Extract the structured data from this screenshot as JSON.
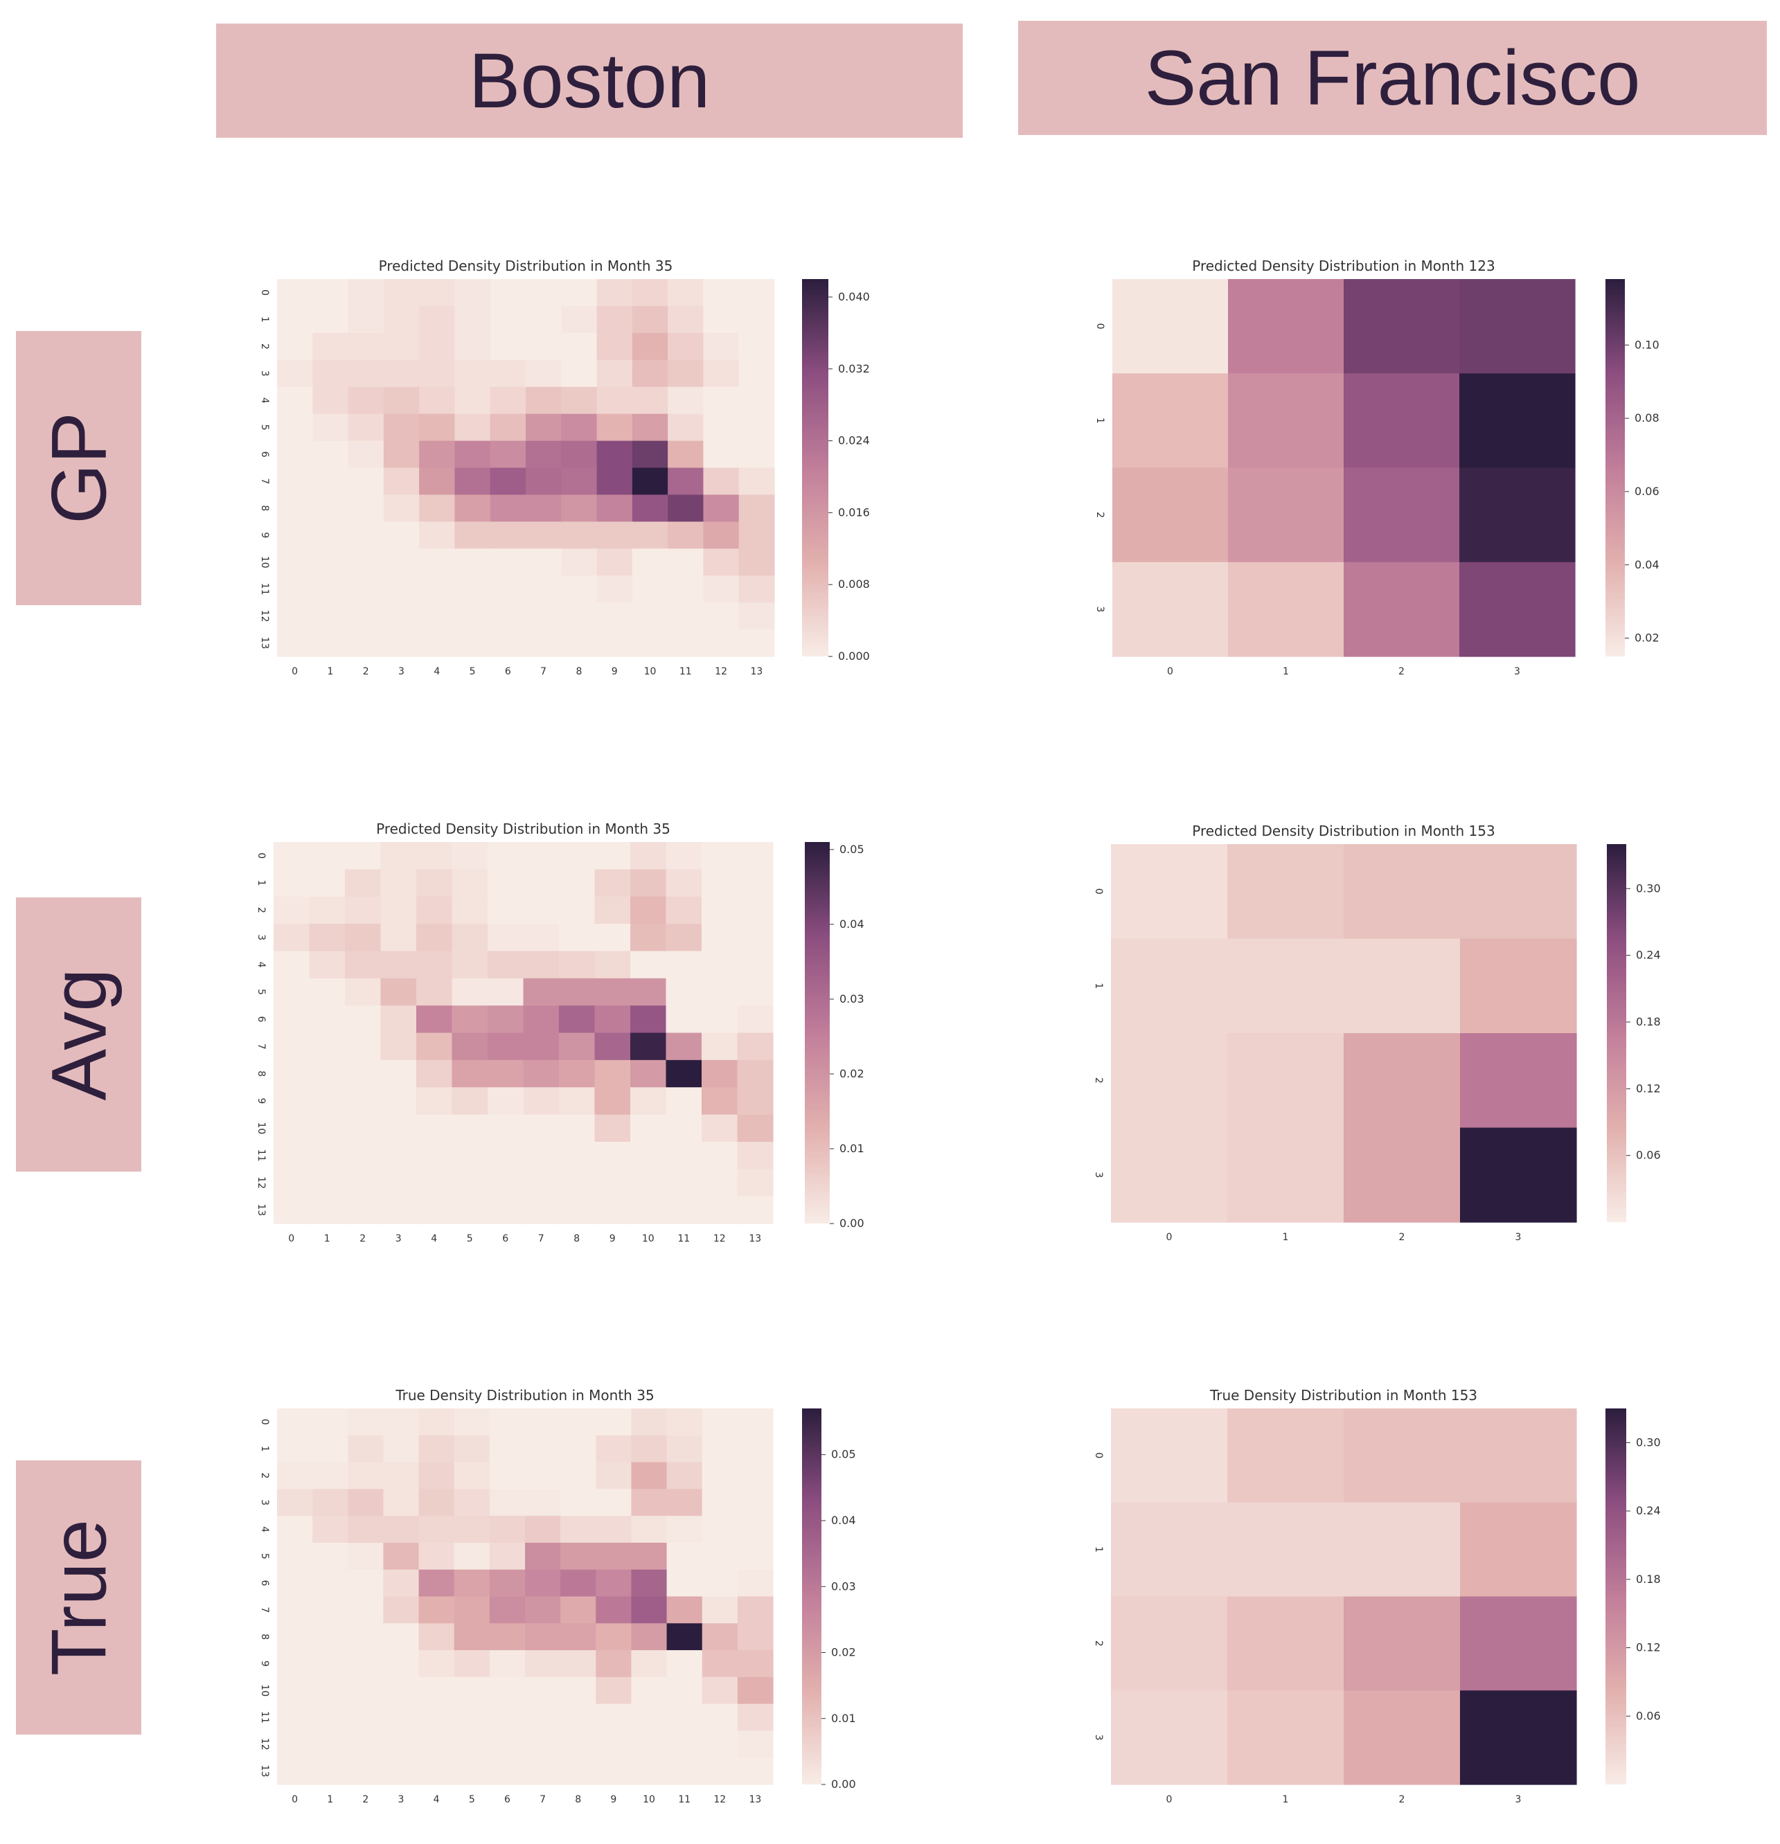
{
  "columns": [
    "Boston",
    "San Francisco"
  ],
  "rows": [
    "GP",
    "Avg",
    "True"
  ],
  "colormap": [
    "#f8ece6",
    "#e2b0ae",
    "#c17e9a",
    "#8c4e80",
    "#2b1d3e"
  ],
  "chart_data": [
    {
      "type": "heatmap",
      "row": "GP",
      "column": "Boston",
      "title": "Predicted Density Distribution in Month 35",
      "x_labels": [
        "0",
        "1",
        "2",
        "3",
        "4",
        "5",
        "6",
        "7",
        "8",
        "9",
        "10",
        "11",
        "12",
        "13"
      ],
      "y_labels": [
        "0",
        "1",
        "2",
        "3",
        "4",
        "5",
        "6",
        "7",
        "8",
        "9",
        "10",
        "11",
        "12",
        "13"
      ],
      "vmin": 0,
      "vmax": 0.042,
      "colorbar_ticks": [
        "0.000",
        "0.008",
        "0.016",
        "0.024",
        "0.032",
        "0.040"
      ],
      "colorbar_tick_values": [
        0,
        0.008,
        0.016,
        0.024,
        0.032,
        0.04
      ],
      "values": [
        [
          0.0,
          0.0,
          0.001,
          0.002,
          0.002,
          0.001,
          0.0,
          0.0,
          0.0,
          0.003,
          0.004,
          0.002,
          0.0,
          0.0
        ],
        [
          0.0,
          0.0,
          0.001,
          0.002,
          0.003,
          0.001,
          0.0,
          0.0,
          0.001,
          0.005,
          0.007,
          0.003,
          0.0,
          0.0
        ],
        [
          0.0,
          0.002,
          0.002,
          0.002,
          0.003,
          0.001,
          0.0,
          0.0,
          0.0,
          0.005,
          0.01,
          0.005,
          0.001,
          0.0
        ],
        [
          0.001,
          0.003,
          0.003,
          0.003,
          0.003,
          0.002,
          0.002,
          0.001,
          0.0,
          0.003,
          0.008,
          0.006,
          0.002,
          0.0
        ],
        [
          0.0,
          0.003,
          0.005,
          0.006,
          0.004,
          0.002,
          0.004,
          0.007,
          0.006,
          0.004,
          0.004,
          0.001,
          0.0,
          0.0
        ],
        [
          0.0,
          0.001,
          0.003,
          0.008,
          0.009,
          0.004,
          0.008,
          0.016,
          0.018,
          0.01,
          0.014,
          0.003,
          0.0,
          0.0
        ],
        [
          0.0,
          0.0,
          0.001,
          0.008,
          0.016,
          0.02,
          0.018,
          0.024,
          0.025,
          0.032,
          0.035,
          0.01,
          0.0,
          0.0
        ],
        [
          0.0,
          0.0,
          0.0,
          0.004,
          0.015,
          0.024,
          0.028,
          0.025,
          0.024,
          0.032,
          0.042,
          0.026,
          0.005,
          0.002
        ],
        [
          0.0,
          0.0,
          0.0,
          0.002,
          0.006,
          0.014,
          0.018,
          0.018,
          0.016,
          0.02,
          0.03,
          0.034,
          0.018,
          0.006
        ],
        [
          0.0,
          0.0,
          0.0,
          0.0,
          0.002,
          0.006,
          0.006,
          0.006,
          0.006,
          0.006,
          0.006,
          0.008,
          0.012,
          0.006
        ],
        [
          0.0,
          0.0,
          0.0,
          0.0,
          0.0,
          0.0,
          0.0,
          0.0,
          0.001,
          0.003,
          0.0,
          0.0,
          0.004,
          0.006
        ],
        [
          0.0,
          0.0,
          0.0,
          0.0,
          0.0,
          0.0,
          0.0,
          0.0,
          0.0,
          0.001,
          0.0,
          0.0,
          0.001,
          0.003
        ],
        [
          0.0,
          0.0,
          0.0,
          0.0,
          0.0,
          0.0,
          0.0,
          0.0,
          0.0,
          0.0,
          0.0,
          0.0,
          0.0,
          0.001
        ],
        [
          0.0,
          0.0,
          0.0,
          0.0,
          0.0,
          0.0,
          0.0,
          0.0,
          0.0,
          0.0,
          0.0,
          0.0,
          0.0,
          0.0
        ]
      ]
    },
    {
      "type": "heatmap",
      "row": "GP",
      "column": "San Francisco",
      "title": "Predicted Density Distribution in Month 123",
      "x_labels": [
        "0",
        "1",
        "2",
        "3"
      ],
      "y_labels": [
        "0",
        "1",
        "2",
        "3"
      ],
      "vmin": 0.015,
      "vmax": 0.118,
      "colorbar_ticks": [
        "0.02",
        "0.04",
        "0.06",
        "0.08",
        "0.10"
      ],
      "colorbar_tick_values": [
        0.02,
        0.04,
        0.06,
        0.08,
        0.1
      ],
      "values": [
        [
          0.018,
          0.066,
          0.098,
          0.1
        ],
        [
          0.036,
          0.058,
          0.088,
          0.118
        ],
        [
          0.042,
          0.054,
          0.082,
          0.114
        ],
        [
          0.024,
          0.032,
          0.068,
          0.096
        ]
      ]
    },
    {
      "type": "heatmap",
      "row": "Avg",
      "column": "Boston",
      "title": "Predicted Density Distribution in Month 35",
      "x_labels": [
        "0",
        "1",
        "2",
        "3",
        "4",
        "5",
        "6",
        "7",
        "8",
        "9",
        "10",
        "11",
        "12",
        "13"
      ],
      "y_labels": [
        "0",
        "1",
        "2",
        "3",
        "4",
        "5",
        "6",
        "7",
        "8",
        "9",
        "10",
        "11",
        "12",
        "13"
      ],
      "vmin": 0,
      "vmax": 0.051,
      "colorbar_ticks": [
        "0.00",
        "0.01",
        "0.02",
        "0.03",
        "0.04",
        "0.05"
      ],
      "colorbar_tick_values": [
        0,
        0.01,
        0.02,
        0.03,
        0.04,
        0.05
      ],
      "values": [
        [
          0.0,
          0.0,
          0.0,
          0.002,
          0.002,
          0.001,
          0.0,
          0.0,
          0.0,
          0.0,
          0.003,
          0.001,
          0.0,
          0.0
        ],
        [
          0.0,
          0.0,
          0.004,
          0.002,
          0.004,
          0.002,
          0.0,
          0.0,
          0.0,
          0.005,
          0.008,
          0.003,
          0.0,
          0.0
        ],
        [
          0.001,
          0.002,
          0.003,
          0.002,
          0.005,
          0.002,
          0.0,
          0.0,
          0.0,
          0.004,
          0.011,
          0.005,
          0.0,
          0.0
        ],
        [
          0.003,
          0.006,
          0.007,
          0.002,
          0.007,
          0.004,
          0.001,
          0.001,
          0.0,
          0.0,
          0.01,
          0.008,
          0.0,
          0.0
        ],
        [
          0.0,
          0.003,
          0.006,
          0.006,
          0.006,
          0.004,
          0.006,
          0.006,
          0.005,
          0.004,
          0.0,
          0.0,
          0.0,
          0.0
        ],
        [
          0.0,
          0.0,
          0.002,
          0.01,
          0.006,
          0.001,
          0.001,
          0.02,
          0.02,
          0.02,
          0.02,
          0.0,
          0.0,
          0.0
        ],
        [
          0.0,
          0.0,
          0.0,
          0.004,
          0.024,
          0.018,
          0.02,
          0.024,
          0.032,
          0.026,
          0.036,
          0.0,
          0.0,
          0.001
        ],
        [
          0.0,
          0.0,
          0.0,
          0.004,
          0.01,
          0.022,
          0.024,
          0.024,
          0.02,
          0.032,
          0.049,
          0.02,
          0.002,
          0.006
        ],
        [
          0.0,
          0.0,
          0.0,
          0.0,
          0.006,
          0.016,
          0.016,
          0.018,
          0.016,
          0.012,
          0.018,
          0.051,
          0.014,
          0.008
        ],
        [
          0.0,
          0.0,
          0.0,
          0.0,
          0.002,
          0.004,
          0.001,
          0.003,
          0.002,
          0.012,
          0.002,
          0.0,
          0.012,
          0.008
        ],
        [
          0.0,
          0.0,
          0.0,
          0.0,
          0.0,
          0.0,
          0.0,
          0.0,
          0.0,
          0.006,
          0.0,
          0.0,
          0.003,
          0.01
        ],
        [
          0.0,
          0.0,
          0.0,
          0.0,
          0.0,
          0.0,
          0.0,
          0.0,
          0.0,
          0.0,
          0.0,
          0.0,
          0.0,
          0.003
        ],
        [
          0.0,
          0.0,
          0.0,
          0.0,
          0.0,
          0.0,
          0.0,
          0.0,
          0.0,
          0.0,
          0.0,
          0.0,
          0.0,
          0.002
        ],
        [
          0.0,
          0.0,
          0.0,
          0.0,
          0.0,
          0.0,
          0.0,
          0.0,
          0.0,
          0.0,
          0.0,
          0.0,
          0.0,
          0.0
        ]
      ]
    },
    {
      "type": "heatmap",
      "row": "Avg",
      "column": "San Francisco",
      "title": "Predicted Density Distribution in Month 153",
      "x_labels": [
        "0",
        "1",
        "2",
        "3"
      ],
      "y_labels": [
        "0",
        "1",
        "2",
        "3"
      ],
      "vmin": 0.0,
      "vmax": 0.34,
      "colorbar_ticks": [
        "0.06",
        "0.12",
        "0.18",
        "0.24",
        "0.30"
      ],
      "colorbar_tick_values": [
        0.06,
        0.12,
        0.18,
        0.24,
        0.3
      ],
      "values": [
        [
          0.02,
          0.05,
          0.06,
          0.06
        ],
        [
          0.03,
          0.03,
          0.03,
          0.08
        ],
        [
          0.03,
          0.04,
          0.1,
          0.18
        ],
        [
          0.03,
          0.04,
          0.1,
          0.34
        ]
      ]
    },
    {
      "type": "heatmap",
      "row": "True",
      "column": "Boston",
      "title": "True Density Distribution in Month 35",
      "x_labels": [
        "0",
        "1",
        "2",
        "3",
        "4",
        "5",
        "6",
        "7",
        "8",
        "9",
        "10",
        "11",
        "12",
        "13"
      ],
      "y_labels": [
        "0",
        "1",
        "2",
        "3",
        "4",
        "5",
        "6",
        "7",
        "8",
        "9",
        "10",
        "11",
        "12",
        "13"
      ],
      "vmin": 0,
      "vmax": 0.057,
      "colorbar_ticks": [
        "0.00",
        "0.01",
        "0.02",
        "0.03",
        "0.04",
        "0.05"
      ],
      "colorbar_tick_values": [
        0,
        0.01,
        0.02,
        0.03,
        0.04,
        0.05
      ],
      "values": [
        [
          0.0,
          0.0,
          0.001,
          0.001,
          0.002,
          0.001,
          0.0,
          0.0,
          0.0,
          0.0,
          0.003,
          0.002,
          0.0,
          0.0
        ],
        [
          0.0,
          0.0,
          0.003,
          0.001,
          0.005,
          0.003,
          0.0,
          0.0,
          0.0,
          0.004,
          0.006,
          0.003,
          0.0,
          0.0
        ],
        [
          0.001,
          0.001,
          0.002,
          0.002,
          0.006,
          0.002,
          0.0,
          0.0,
          0.0,
          0.003,
          0.014,
          0.006,
          0.0,
          0.0
        ],
        [
          0.003,
          0.005,
          0.008,
          0.002,
          0.007,
          0.004,
          0.001,
          0.001,
          0.0,
          0.0,
          0.01,
          0.01,
          0.0,
          0.0
        ],
        [
          0.0,
          0.004,
          0.006,
          0.006,
          0.005,
          0.005,
          0.006,
          0.008,
          0.004,
          0.004,
          0.002,
          0.001,
          0.0,
          0.0
        ],
        [
          0.0,
          0.0,
          0.001,
          0.012,
          0.004,
          0.001,
          0.004,
          0.024,
          0.02,
          0.02,
          0.02,
          0.0,
          0.0,
          0.0
        ],
        [
          0.0,
          0.0,
          0.0,
          0.004,
          0.024,
          0.018,
          0.022,
          0.026,
          0.03,
          0.026,
          0.036,
          0.0,
          0.0,
          0.001
        ],
        [
          0.0,
          0.0,
          0.0,
          0.006,
          0.014,
          0.016,
          0.024,
          0.022,
          0.016,
          0.03,
          0.038,
          0.016,
          0.002,
          0.008
        ],
        [
          0.0,
          0.0,
          0.0,
          0.0,
          0.006,
          0.016,
          0.016,
          0.018,
          0.018,
          0.014,
          0.02,
          0.057,
          0.012,
          0.008
        ],
        [
          0.0,
          0.0,
          0.0,
          0.0,
          0.002,
          0.004,
          0.001,
          0.003,
          0.003,
          0.012,
          0.002,
          0.0,
          0.01,
          0.01
        ],
        [
          0.0,
          0.0,
          0.0,
          0.0,
          0.0,
          0.0,
          0.0,
          0.0,
          0.0,
          0.006,
          0.0,
          0.0,
          0.004,
          0.014
        ],
        [
          0.0,
          0.0,
          0.0,
          0.0,
          0.0,
          0.0,
          0.0,
          0.0,
          0.0,
          0.0,
          0.0,
          0.0,
          0.0,
          0.004
        ],
        [
          0.0,
          0.0,
          0.0,
          0.0,
          0.0,
          0.0,
          0.0,
          0.0,
          0.0,
          0.0,
          0.0,
          0.0,
          0.0,
          0.001
        ],
        [
          0.0,
          0.0,
          0.0,
          0.0,
          0.0,
          0.0,
          0.0,
          0.0,
          0.0,
          0.0,
          0.0,
          0.0,
          0.0,
          0.0
        ]
      ]
    },
    {
      "type": "heatmap",
      "row": "True",
      "column": "San Francisco",
      "title": "True Density Distribution in Month 153",
      "x_labels": [
        "0",
        "1",
        "2",
        "3"
      ],
      "y_labels": [
        "0",
        "1",
        "2",
        "3"
      ],
      "vmin": 0.0,
      "vmax": 0.33,
      "colorbar_ticks": [
        "0.06",
        "0.12",
        "0.18",
        "0.24",
        "0.30"
      ],
      "colorbar_tick_values": [
        0.06,
        0.12,
        0.18,
        0.24,
        0.3
      ],
      "values": [
        [
          0.02,
          0.05,
          0.06,
          0.06
        ],
        [
          0.03,
          0.03,
          0.03,
          0.08
        ],
        [
          0.04,
          0.06,
          0.11,
          0.18
        ],
        [
          0.03,
          0.05,
          0.09,
          0.33
        ]
      ]
    }
  ]
}
